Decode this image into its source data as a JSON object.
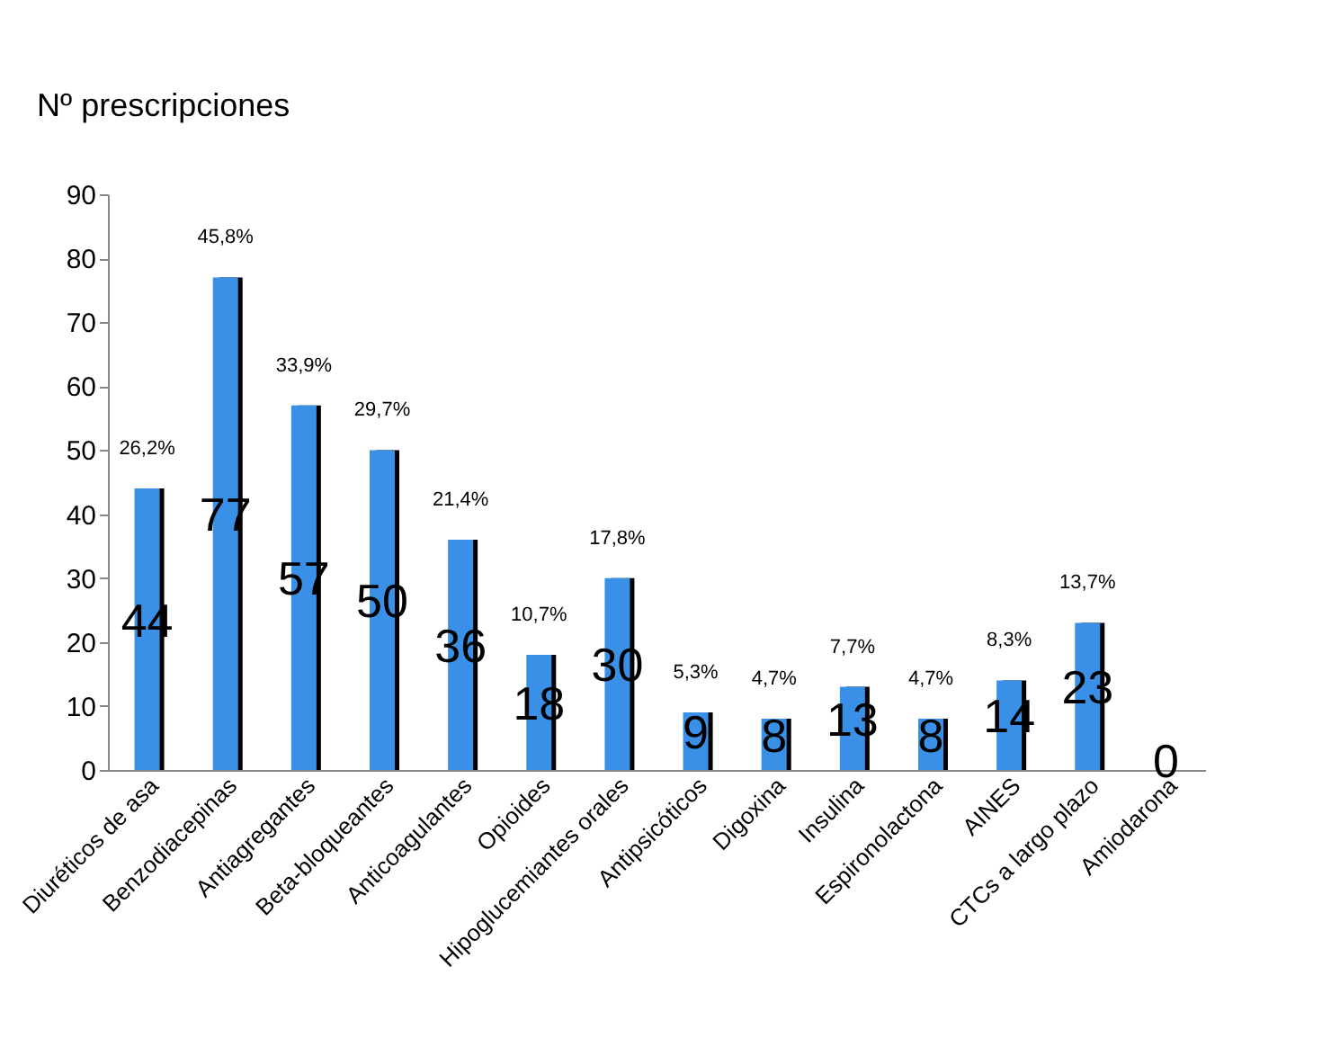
{
  "chart_data": {
    "type": "bar",
    "ylabel": "Nº prescripciones",
    "categories": [
      "Diuréticos de asa",
      "Benzodiacepinas",
      "Antiagregantes",
      "Beta-bloqueantes",
      "Anticoagulantes",
      "Opioides",
      "Hipoglucemiantes orales",
      "Antipsicóticos",
      "Digoxina",
      "Insulina",
      "Espironolactona",
      "AINES",
      "CTCs a largo plazo",
      "Amiodarona"
    ],
    "values": [
      44,
      77,
      57,
      50,
      36,
      18,
      30,
      9,
      8,
      13,
      8,
      14,
      23,
      0
    ],
    "color": "#3a8fe6",
    "ylim": [
      0,
      90
    ],
    "yticks": [
      0,
      10,
      20,
      30,
      40,
      50,
      60,
      70,
      80,
      90
    ],
    "grid": false,
    "data_labels": true,
    "annotations": [
      {
        "text": "26,2%",
        "x": "Diuréticos de asa",
        "y": 44
      },
      {
        "text": "45,8%",
        "x": "Benzodiacepinas",
        "y": 77
      },
      {
        "text": "33,9%",
        "x": "Antiagregantes",
        "y": 57
      },
      {
        "text": "29,7%",
        "x": "Beta-bloqueantes",
        "y": 50
      },
      {
        "text": "21,4%",
        "x": "Anticoagulantes",
        "y": 36
      },
      {
        "text": "10,7%",
        "x": "Opioides",
        "y": 18
      },
      {
        "text": "17,8%",
        "x": "Hipoglucemiantes orales",
        "y": 30
      },
      {
        "text": "5,3%",
        "x": "Antipsicóticos",
        "y": 9
      },
      {
        "text": "4,7%",
        "x": "Digoxina",
        "y": 8
      },
      {
        "text": "7,7%",
        "x": "Insulina",
        "y": 13
      },
      {
        "text": "4,7%",
        "x": "Espironolactona",
        "y": 8
      },
      {
        "text": "8,3%",
        "x": "AINES",
        "y": 14
      },
      {
        "text": "13,7%",
        "x": "CTCs a largo plazo",
        "y": 23
      }
    ]
  }
}
